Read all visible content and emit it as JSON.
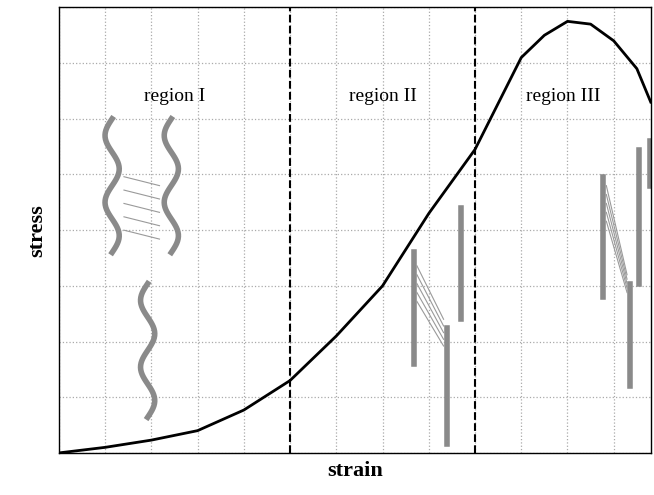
{
  "chart_data": {
    "type": "line",
    "xlabel": "strain",
    "ylabel": "stress",
    "x": [
      0,
      1,
      2,
      3,
      4,
      5,
      6,
      7,
      8,
      9,
      10,
      10.5,
      11,
      11.5,
      12,
      12.5,
      12.8
    ],
    "values": [
      0,
      0.1,
      0.23,
      0.4,
      0.77,
      1.3,
      2.1,
      3.0,
      4.3,
      5.45,
      7.1,
      7.5,
      7.75,
      7.7,
      7.4,
      6.9,
      6.3
    ],
    "color": "#000000",
    "xlim": [
      0,
      12.8
    ],
    "ylim": [
      0,
      8
    ],
    "xticks": [
      0,
      1,
      2,
      3,
      4,
      5,
      6,
      7,
      8,
      9,
      10,
      11,
      12
    ],
    "yticks": [
      0,
      1,
      2,
      3,
      4,
      5,
      6,
      7,
      8
    ],
    "grid": true,
    "tick_labels": false,
    "regions": [
      {
        "label": "region I",
        "start": 0,
        "end": 5
      },
      {
        "label": "region II",
        "start": 5,
        "end": 9
      },
      {
        "label": "region III",
        "start": 9,
        "end": 12.8
      }
    ]
  }
}
